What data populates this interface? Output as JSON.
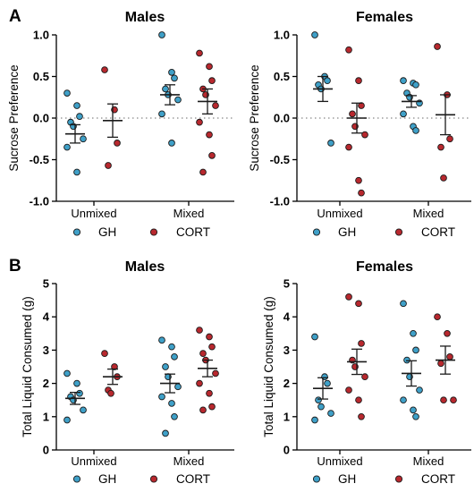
{
  "panels": [
    {
      "letter": "A"
    },
    {
      "letter": "B"
    }
  ],
  "colors": {
    "GH": "#3fa0c8",
    "CORT": "#b8282e",
    "axis": "#000000",
    "reference_line": "#888888"
  },
  "chart_data": [
    {
      "type": "scatter",
      "panel": "A",
      "title": "Males",
      "ylabel": "Sucrose Preference",
      "xlabel": "",
      "ylim": [
        -1.0,
        1.0
      ],
      "yticks": [
        "-1.0",
        "-0.5",
        "0.0",
        "0.5",
        "1.0"
      ],
      "ytick_values": [
        -1.0,
        -0.5,
        0.0,
        0.5,
        1.0
      ],
      "reference_line": 0,
      "categories": [
        "Unmixed",
        "Mixed"
      ],
      "series": [
        {
          "name": "GH",
          "values": [
            [
              0.3,
              0.15,
              0.02,
              -0.05,
              -0.1,
              -0.25,
              -0.35,
              -0.65
            ],
            [
              1.0,
              0.55,
              0.48,
              0.35,
              0.28,
              0.22,
              0.05,
              -0.3
            ]
          ],
          "mean": [
            -0.19,
            0.28
          ],
          "sem": [
            0.11,
            0.12
          ]
        },
        {
          "name": "CORT",
          "values": [
            [
              0.58,
              0.1,
              -0.3,
              -0.57
            ],
            [
              0.78,
              0.62,
              0.45,
              0.35,
              0.28,
              0.15,
              -0.05,
              -0.2,
              -0.45,
              -0.65
            ]
          ],
          "mean": [
            -0.03,
            0.2
          ],
          "sem": [
            0.2,
            0.15
          ]
        }
      ],
      "legend": [
        "GH",
        "CORT"
      ],
      "legend_position": "bottom"
    },
    {
      "type": "scatter",
      "panel": "A",
      "title": "Females",
      "ylabel": "Sucrose Preference",
      "xlabel": "",
      "ylim": [
        -1.0,
        1.0
      ],
      "yticks": [
        "-1.0",
        "-0.5",
        "0.0",
        "0.5",
        "1.0"
      ],
      "ytick_values": [
        -1.0,
        -0.5,
        0.0,
        0.5,
        1.0
      ],
      "reference_line": 0,
      "categories": [
        "Unmixed",
        "Mixed"
      ],
      "series": [
        {
          "name": "GH",
          "values": [
            [
              1.0,
              0.5,
              0.45,
              0.4,
              0.35,
              -0.3
            ],
            [
              0.45,
              0.42,
              0.4,
              0.3,
              0.25,
              0.18,
              0.05,
              -0.1,
              -0.15
            ]
          ],
          "mean": [
            0.35,
            0.2
          ],
          "sem": [
            0.15,
            0.07
          ]
        },
        {
          "name": "CORT",
          "values": [
            [
              0.82,
              0.45,
              0.15,
              0.05,
              -0.1,
              -0.2,
              -0.35,
              -0.75,
              -0.9
            ],
            [
              0.86,
              0.28,
              -0.25,
              -0.35,
              -0.72
            ]
          ],
          "mean": [
            0.0,
            0.04
          ],
          "sem": [
            0.18,
            0.24
          ]
        }
      ],
      "legend": [
        "GH",
        "CORT"
      ],
      "legend_position": "bottom"
    },
    {
      "type": "scatter",
      "panel": "B",
      "title": "Males",
      "ylabel": "Total Liquid Consumed (g)",
      "xlabel": "",
      "ylim": [
        0,
        5
      ],
      "yticks": [
        "0",
        "1",
        "2",
        "3",
        "4",
        "5"
      ],
      "ytick_values": [
        0,
        1,
        2,
        3,
        4,
        5
      ],
      "categories": [
        "Unmixed",
        "Mixed"
      ],
      "series": [
        {
          "name": "GH",
          "values": [
            [
              2.3,
              2.0,
              1.7,
              1.6,
              1.5,
              1.2,
              0.9
            ],
            [
              3.3,
              3.1,
              2.8,
              2.5,
              2.2,
              1.9,
              1.6,
              1.4,
              1.0,
              0.5
            ]
          ],
          "mean": [
            1.55,
            2.0
          ],
          "sem": [
            0.18,
            0.28
          ]
        },
        {
          "name": "CORT",
          "values": [
            [
              2.9,
              2.5,
              2.2,
              1.8,
              1.7
            ],
            [
              3.6,
              3.4,
              3.1,
              2.9,
              2.7,
              2.3,
              2.0,
              1.7,
              1.3,
              1.2
            ]
          ],
          "mean": [
            2.2,
            2.45
          ],
          "sem": [
            0.23,
            0.25
          ]
        }
      ],
      "legend": [
        "GH",
        "CORT"
      ],
      "legend_position": "bottom"
    },
    {
      "type": "scatter",
      "panel": "B",
      "title": "Females",
      "ylabel": "Total Liquid Consumed (g)",
      "xlabel": "",
      "ylim": [
        0,
        5
      ],
      "yticks": [
        "0",
        "1",
        "2",
        "3",
        "4",
        "5"
      ],
      "ytick_values": [
        0,
        1,
        2,
        3,
        4,
        5
      ],
      "categories": [
        "Unmixed",
        "Mixed"
      ],
      "series": [
        {
          "name": "GH",
          "values": [
            [
              3.4,
              2.2,
              2.0,
              1.5,
              1.3,
              1.1,
              0.9
            ],
            [
              4.4,
              3.5,
              3.0,
              2.7,
              2.2,
              1.8,
              1.5,
              1.2,
              1.0
            ]
          ],
          "mean": [
            1.85,
            2.3
          ],
          "sem": [
            0.32,
            0.38
          ]
        },
        {
          "name": "CORT",
          "values": [
            [
              4.6,
              4.4,
              3.2,
              2.7,
              2.5,
              2.2,
              1.8,
              1.5,
              1.0
            ],
            [
              4.0,
              3.5,
              2.8,
              2.6,
              1.5,
              1.5
            ]
          ],
          "mean": [
            2.65,
            2.7
          ],
          "sem": [
            0.38,
            0.42
          ]
        }
      ],
      "legend": [
        "GH",
        "CORT"
      ],
      "legend_position": "bottom"
    }
  ]
}
